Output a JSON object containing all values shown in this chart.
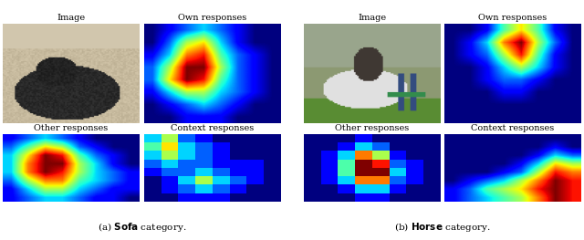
{
  "label_image": "Image",
  "label_own": "Own responses",
  "label_other": "Other responses",
  "label_context": "Context responses",
  "fig_width": 6.4,
  "fig_height": 2.63,
  "bg_color": "#ffffff",
  "sofa_own_responses": [
    [
      0,
      1,
      2,
      3,
      2,
      1,
      0,
      0
    ],
    [
      0,
      2,
      5,
      6,
      3,
      1,
      0,
      0
    ],
    [
      1,
      3,
      7,
      8,
      4,
      2,
      1,
      0
    ],
    [
      2,
      5,
      9,
      9,
      5,
      2,
      1,
      0
    ],
    [
      2,
      6,
      9,
      8,
      4,
      2,
      1,
      0
    ],
    [
      1,
      3,
      5,
      5,
      3,
      2,
      1,
      0
    ],
    [
      0,
      1,
      2,
      3,
      2,
      1,
      0,
      0
    ],
    [
      0,
      0,
      1,
      1,
      1,
      0,
      0,
      0
    ]
  ],
  "sofa_other_responses": [
    [
      1,
      2,
      3,
      2,
      1,
      0,
      0,
      0
    ],
    [
      2,
      4,
      6,
      5,
      2,
      1,
      0,
      0
    ],
    [
      3,
      6,
      9,
      8,
      4,
      2,
      1,
      0
    ],
    [
      3,
      7,
      9,
      9,
      5,
      3,
      1,
      0
    ],
    [
      3,
      7,
      9,
      8,
      5,
      3,
      2,
      1
    ],
    [
      2,
      5,
      7,
      7,
      4,
      3,
      2,
      1
    ],
    [
      1,
      3,
      5,
      5,
      3,
      2,
      1,
      1
    ],
    [
      1,
      2,
      3,
      3,
      2,
      1,
      1,
      0
    ]
  ],
  "sofa_context_responses": [
    [
      3,
      5,
      2,
      1,
      0,
      0,
      0,
      0
    ],
    [
      4,
      6,
      3,
      2,
      1,
      0,
      0,
      0
    ],
    [
      3,
      5,
      3,
      2,
      1,
      0,
      0,
      0
    ],
    [
      2,
      3,
      2,
      2,
      1,
      1,
      1,
      0
    ],
    [
      1,
      2,
      2,
      3,
      2,
      1,
      1,
      0
    ],
    [
      0,
      1,
      3,
      5,
      3,
      2,
      1,
      0
    ],
    [
      0,
      1,
      2,
      3,
      2,
      1,
      0,
      0
    ],
    [
      0,
      0,
      1,
      1,
      1,
      0,
      0,
      0
    ]
  ],
  "horse_own_responses": [
    [
      0,
      0,
      1,
      4,
      6,
      4,
      1,
      0
    ],
    [
      0,
      1,
      3,
      7,
      9,
      5,
      2,
      0
    ],
    [
      0,
      1,
      2,
      5,
      8,
      4,
      1,
      0
    ],
    [
      0,
      0,
      1,
      3,
      5,
      3,
      1,
      0
    ],
    [
      0,
      0,
      1,
      2,
      2,
      1,
      0,
      0
    ],
    [
      0,
      0,
      0,
      1,
      1,
      0,
      0,
      0
    ],
    [
      0,
      0,
      0,
      0,
      0,
      0,
      0,
      0
    ],
    [
      0,
      0,
      0,
      0,
      0,
      0,
      0,
      0
    ]
  ],
  "horse_other_responses": [
    [
      0,
      0,
      0,
      1,
      0,
      0,
      0,
      0
    ],
    [
      0,
      0,
      1,
      3,
      2,
      0,
      0,
      0
    ],
    [
      0,
      1,
      3,
      7,
      5,
      1,
      0,
      0
    ],
    [
      0,
      1,
      4,
      9,
      8,
      2,
      1,
      0
    ],
    [
      0,
      1,
      4,
      9,
      9,
      3,
      1,
      0
    ],
    [
      0,
      1,
      3,
      7,
      7,
      2,
      1,
      0
    ],
    [
      0,
      0,
      1,
      3,
      3,
      1,
      0,
      0
    ],
    [
      0,
      0,
      0,
      1,
      1,
      0,
      0,
      0
    ]
  ],
  "horse_context_responses": [
    [
      0,
      0,
      0,
      0,
      0,
      0,
      0,
      0
    ],
    [
      0,
      0,
      0,
      0,
      0,
      0,
      1,
      0
    ],
    [
      0,
      0,
      0,
      0,
      0,
      1,
      3,
      2
    ],
    [
      0,
      0,
      0,
      0,
      1,
      3,
      6,
      5
    ],
    [
      0,
      0,
      0,
      1,
      2,
      5,
      8,
      7
    ],
    [
      0,
      1,
      2,
      3,
      5,
      7,
      9,
      8
    ],
    [
      1,
      2,
      4,
      5,
      6,
      8,
      9,
      8
    ],
    [
      1,
      2,
      3,
      4,
      5,
      7,
      9,
      8
    ]
  ]
}
